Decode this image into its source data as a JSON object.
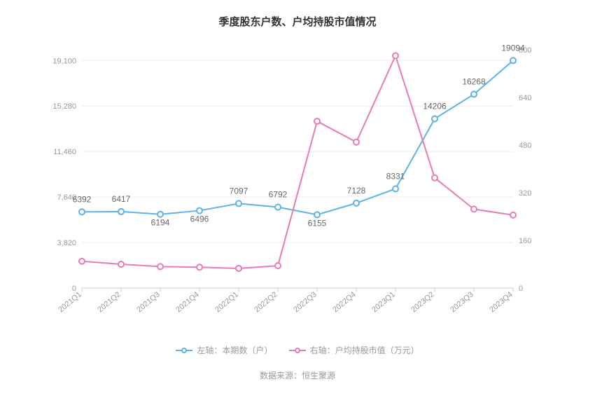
{
  "title": "季度股东户数、户均持股市值情况",
  "chart": {
    "type": "line-dual-axis",
    "background_color": "#ffffff",
    "grid_color": "#eeeeee",
    "axis_color": "#cccccc",
    "axis_label_color": "#999999",
    "data_label_color": "#666666",
    "axis_fontsize": 11,
    "data_label_fontsize": 12,
    "categories": [
      "2021Q1",
      "2021Q2",
      "2021Q3",
      "2021Q4",
      "2022Q1",
      "2022Q2",
      "2022Q3",
      "2022Q4",
      "2023Q1",
      "2023Q2",
      "2023Q3",
      "2023Q4"
    ],
    "left_axis": {
      "label": "户",
      "ylim": [
        0,
        20000
      ],
      "ticks": [
        0,
        3820,
        7640,
        11460,
        15280,
        19100
      ]
    },
    "right_axis": {
      "label": "万元",
      "ylim": [
        0,
        800
      ],
      "ticks": [
        0,
        160,
        320,
        480,
        640,
        800
      ]
    },
    "series": [
      {
        "name": "左轴：本期数（户）",
        "axis": "left",
        "color": "#5cb3e8",
        "line_width": 2,
        "marker": "circle-open",
        "marker_size": 4,
        "values": [
          6392,
          6417,
          6194,
          6496,
          7097,
          6792,
          6155,
          7128,
          8331,
          14206,
          16268,
          19094
        ],
        "labels": [
          "6392",
          "6417",
          "6194",
          "6496",
          "7097",
          "6792",
          "6155",
          "7128",
          "8331",
          "14206",
          "16268",
          "19094"
        ],
        "label_offset": [
          -14,
          -14,
          16,
          16,
          -14,
          -14,
          16,
          -14,
          -14,
          -14,
          -14,
          -14
        ]
      },
      {
        "name": "右轴：户均持股市值（万元）",
        "axis": "right",
        "color": "#e87ab4",
        "line_width": 2,
        "marker": "circle-open",
        "marker_size": 4,
        "values": [
          90,
          80,
          72,
          70,
          66,
          75,
          560,
          490,
          780,
          370,
          265,
          245
        ],
        "labels": [
          "",
          "",
          "",
          "",
          "",
          "",
          "",
          "",
          "",
          "",
          "",
          ""
        ],
        "label_offset": [
          0,
          0,
          0,
          0,
          0,
          0,
          0,
          0,
          0,
          0,
          0,
          0
        ]
      }
    ]
  },
  "legend": {
    "items": [
      {
        "label": "左轴：本期数（户）",
        "color": "#5cb3e8"
      },
      {
        "label": "右轴：户均持股市值（万元）",
        "color": "#e87ab4"
      }
    ]
  },
  "source": "数据来源：恒生聚源"
}
